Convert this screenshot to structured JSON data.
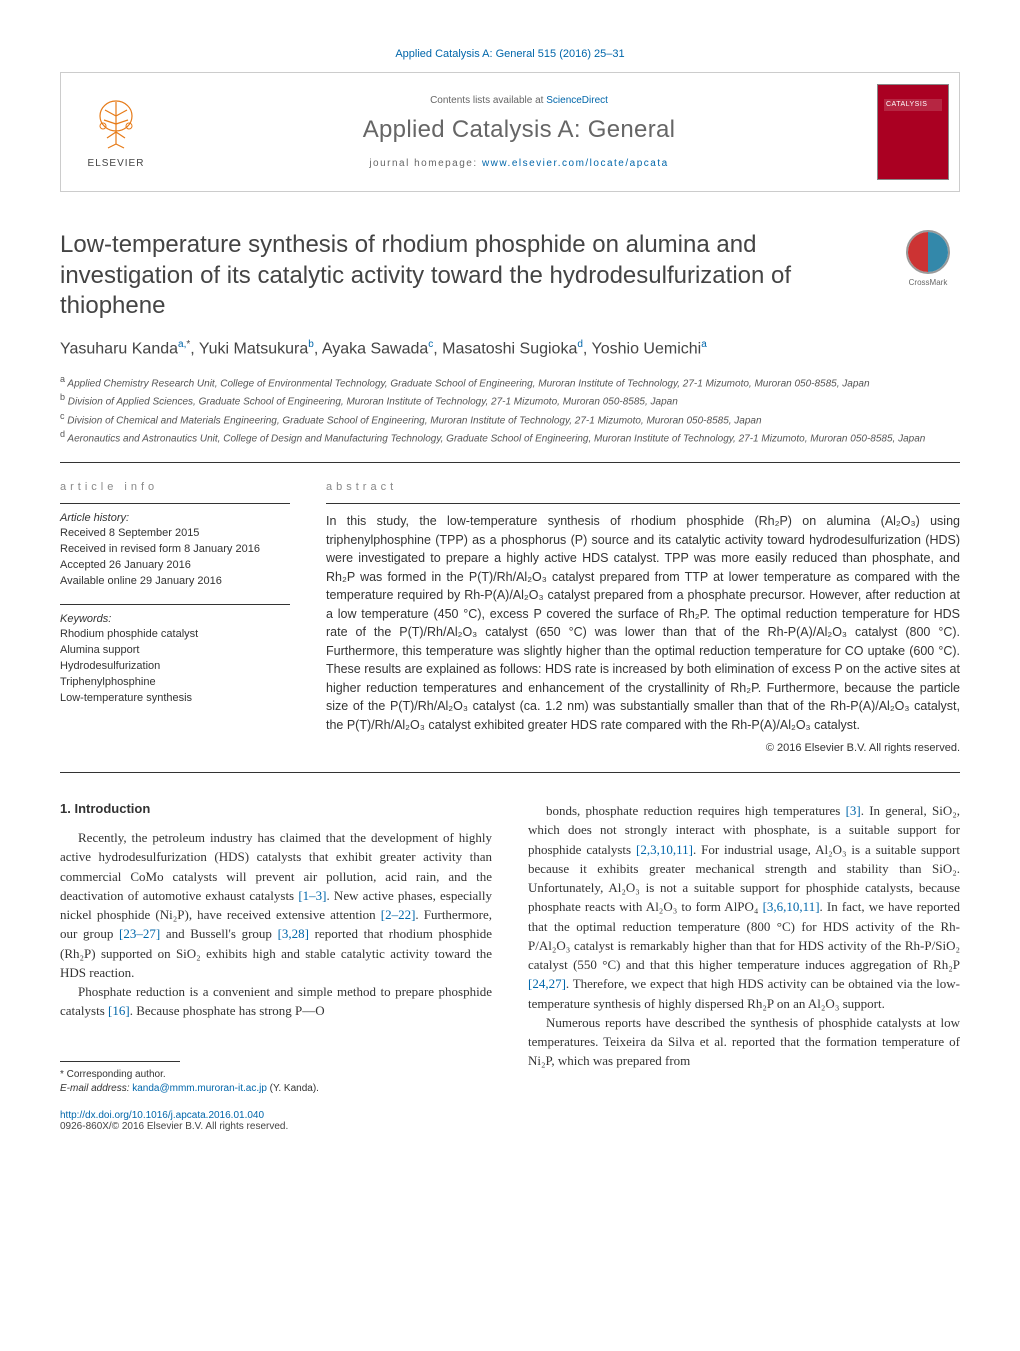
{
  "journal_ref": "Applied Catalysis A: General 515 (2016) 25–31",
  "header": {
    "contents_prefix": "Contents lists available at ",
    "contents_link": "ScienceDirect",
    "journal_name": "Applied Catalysis A: General",
    "homepage_prefix": "journal homepage: ",
    "homepage_link": "www.elsevier.com/locate/apcata",
    "publisher": "ELSEVIER",
    "cover_label": "CATALYSIS"
  },
  "crossmark": "CrossMark",
  "title": "Low-temperature synthesis of rhodium phosphide on alumina and investigation of its catalytic activity toward the hydrodesulfurization of thiophene",
  "authors_html": "Yasuharu Kanda<sup>a,</sup><sup class='sup-plain'>*</sup>, Yuki Matsukura<sup>b</sup>, Ayaka Sawada<sup>c</sup>, Masatoshi Sugioka<sup>d</sup>, Yoshio Uemichi<sup>a</sup>",
  "affiliations": [
    {
      "sup": "a",
      "text": "Applied Chemistry Research Unit, College of Environmental Technology, Graduate School of Engineering, Muroran Institute of Technology, 27-1 Mizumoto, Muroran 050-8585, Japan"
    },
    {
      "sup": "b",
      "text": "Division of Applied Sciences, Graduate School of Engineering, Muroran Institute of Technology, 27-1 Mizumoto, Muroran 050-8585, Japan"
    },
    {
      "sup": "c",
      "text": "Division of Chemical and Materials Engineering, Graduate School of Engineering, Muroran Institute of Technology, 27-1 Mizumoto, Muroran 050-8585, Japan"
    },
    {
      "sup": "d",
      "text": "Aeronautics and Astronautics Unit, College of Design and Manufacturing Technology, Graduate School of Engineering, Muroran Institute of Technology, 27-1 Mizumoto, Muroran 050-8585, Japan"
    }
  ],
  "info": {
    "label": "article info",
    "history_head": "Article history:",
    "history": [
      "Received 8 September 2015",
      "Received in revised form 8 January 2016",
      "Accepted 26 January 2016",
      "Available online 29 January 2016"
    ],
    "keywords_head": "Keywords:",
    "keywords": [
      "Rhodium phosphide catalyst",
      "Alumina support",
      "Hydrodesulfurization",
      "Triphenylphosphine",
      "Low-temperature synthesis"
    ]
  },
  "abstract": {
    "label": "abstract",
    "text": "In this study, the low-temperature synthesis of rhodium phosphide (Rh₂P) on alumina (Al₂O₃) using triphenylphosphine (TPP) as a phosphorus (P) source and its catalytic activity toward hydrodesulfurization (HDS) were investigated to prepare a highly active HDS catalyst. TPP was more easily reduced than phosphate, and Rh₂P was formed in the P(T)/Rh/Al₂O₃ catalyst prepared from TTP at lower temperature as compared with the temperature required by Rh-P(A)/Al₂O₃ catalyst prepared from a phosphate precursor. However, after reduction at a low temperature (450 °C), excess P covered the surface of Rh₂P. The optimal reduction temperature for HDS rate of the P(T)/Rh/Al₂O₃ catalyst (650 °C) was lower than that of the Rh-P(A)/Al₂O₃ catalyst (800 °C). Furthermore, this temperature was slightly higher than the optimal reduction temperature for CO uptake (600 °C). These results are explained as follows: HDS rate is increased by both elimination of excess P on the active sites at higher reduction temperatures and enhancement of the crystallinity of Rh₂P. Furthermore, because the particle size of the P(T)/Rh/Al₂O₃ catalyst (ca. 1.2 nm) was substantially smaller than that of the Rh-P(A)/Al₂O₃ catalyst, the P(T)/Rh/Al₂O₃ catalyst exhibited greater HDS rate compared with the Rh-P(A)/Al₂O₃ catalyst.",
    "copyright": "© 2016 Elsevier B.V. All rights reserved."
  },
  "body": {
    "heading": "1. Introduction",
    "left": [
      "Recently, the petroleum industry has claimed that the development of highly active hydrodesulfurization (HDS) catalysts that exhibit greater activity than commercial CoMo catalysts will prevent air pollution, acid rain, and the deactivation of automotive exhaust catalysts <a>[1–3]</a>. New active phases, especially nickel phosphide (Ni₂P), have received extensive attention <a>[2–22]</a>. Furthermore, our group <a>[23–27]</a> and Bussell's group <a>[3,28]</a> reported that rhodium phosphide (Rh₂P) supported on SiO₂ exhibits high and stable catalytic activity toward the HDS reaction.",
      "Phosphate reduction is a convenient and simple method to prepare phosphide catalysts <a>[16]</a>. Because phosphate has strong P—O"
    ],
    "right": [
      "bonds, phosphate reduction requires high temperatures <a>[3]</a>. In general, SiO₂, which does not strongly interact with phosphate, is a suitable support for phosphide catalysts <a>[2,3,10,11]</a>. For industrial usage, Al₂O₃ is a suitable support because it exhibits greater mechanical strength and stability than SiO₂. Unfortunately, Al₂O₃ is not a suitable support for phosphide catalysts, because phosphate reacts with Al₂O₃ to form AlPO₄ <a>[3,6,10,11]</a>. In fact, we have reported that the optimal reduction temperature (800 °C) for HDS activity of the Rh-P/Al₂O₃ catalyst is remarkably higher than that for HDS activity of the Rh-P/SiO₂ catalyst (550 °C) and that this higher temperature induces aggregation of Rh₂P <a>[24,27]</a>. Therefore, we expect that high HDS activity can be obtained via the low-temperature synthesis of highly dispersed Rh₂P on an Al₂O₃ support.",
      "Numerous reports have described the synthesis of phosphide catalysts at low temperatures. Teixeira da Silva et al. reported that the formation temperature of Ni₂P, which was prepared from"
    ]
  },
  "footnote": {
    "corr": "* Corresponding author.",
    "email_label": "E-mail address: ",
    "email": "kanda@mmm.muroran-it.ac.jp",
    "email_suffix": " (Y. Kanda)."
  },
  "footer": {
    "doi": "http://dx.doi.org/10.1016/j.apcata.2016.01.040",
    "issn_line": "0926-860X/© 2016 Elsevier B.V. All rights reserved."
  },
  "colors": {
    "link": "#0066aa",
    "text": "#333333",
    "muted": "#666666",
    "rule": "#333333",
    "cover_bg": "#aa0022"
  }
}
